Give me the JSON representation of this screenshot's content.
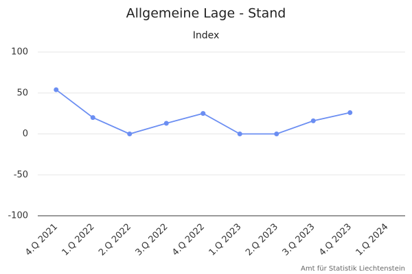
{
  "chart_data": {
    "type": "line",
    "title": "Allgemeine Lage - Stand",
    "subtitle": "Index",
    "credits": "Amt für Statistik Liechtenstein",
    "categories": [
      "4.Q 2021",
      "1.Q 2022",
      "2.Q 2022",
      "3.Q 2022",
      "4.Q 2022",
      "1.Q 2023",
      "2.Q 2023",
      "3.Q 2023",
      "4.Q 2023",
      "1.Q 2024"
    ],
    "values": [
      54,
      20,
      0,
      13,
      25,
      0,
      0,
      16,
      26,
      null
    ],
    "color": "#6b8ef2",
    "ylim": [
      -100,
      100
    ],
    "yticks": [
      -100,
      -50,
      0,
      50,
      100
    ],
    "grid": true
  }
}
